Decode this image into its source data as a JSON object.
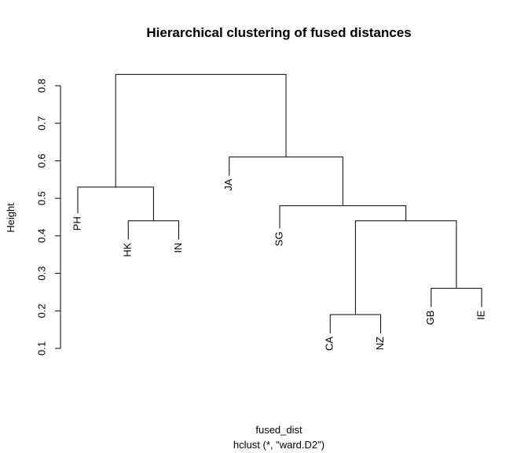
{
  "chart_data": {
    "type": "dendrogram",
    "title": "Hierarchical clustering of fused distances",
    "ylabel": "Height",
    "xlabel": "fused_dist",
    "sublabel": "hclust (*, \"ward.D2\")",
    "ylim": [
      0.1,
      0.8
    ],
    "yticks": [
      "0.1",
      "0.2",
      "0.3",
      "0.4",
      "0.5",
      "0.6",
      "0.7",
      "0.8"
    ],
    "leaves": [
      {
        "label": "PH",
        "height": 0.46
      },
      {
        "label": "HK",
        "height": 0.39
      },
      {
        "label": "IN",
        "height": 0.39
      },
      {
        "label": "JA",
        "height": 0.56
      },
      {
        "label": "SG",
        "height": 0.42
      },
      {
        "label": "CA",
        "height": 0.14
      },
      {
        "label": "NZ",
        "height": 0.14
      },
      {
        "label": "GB",
        "height": 0.21
      },
      {
        "label": "IE",
        "height": 0.21
      }
    ],
    "merges": [
      {
        "left": "HK",
        "right": "IN",
        "height": 0.44
      },
      {
        "left": "PH",
        "right": "HK+IN",
        "height": 0.53
      },
      {
        "left": "CA",
        "right": "NZ",
        "height": 0.19
      },
      {
        "left": "GB",
        "right": "IE",
        "height": 0.26
      },
      {
        "left": "CA+NZ",
        "right": "GB+IE",
        "height": 0.44
      },
      {
        "left": "SG",
        "right": "CA+NZ+GB+IE",
        "height": 0.48
      },
      {
        "left": "JA",
        "right": "SG+CA+NZ+GB+IE",
        "height": 0.61
      },
      {
        "left": "PH+HK+IN",
        "right": "JA+SG+CA+NZ+GB+IE",
        "height": 0.83
      }
    ]
  }
}
